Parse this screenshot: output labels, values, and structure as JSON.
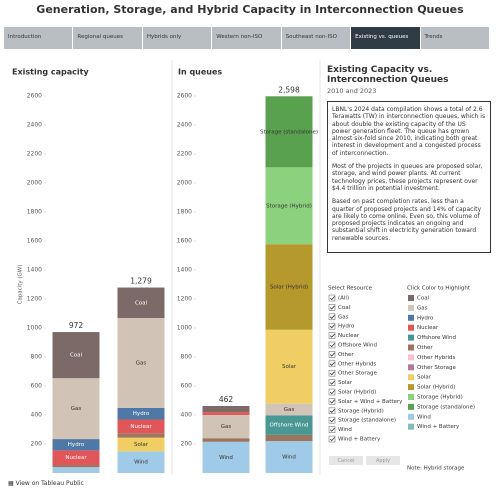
{
  "header": {
    "title": "Generation, Storage, and Hybrid Capacity in Interconnection Queues"
  },
  "tabs": [
    "Introduction",
    "Regional queues",
    "Hybrids only",
    "Western non-ISO",
    "Southeast non-ISO",
    "Existing vs. queues",
    "Trends"
  ],
  "chart_data": [
    {
      "type": "bar",
      "stacked": true,
      "title": "Existing capacity",
      "y_label": "Capacity (GW)",
      "categories": [
        null,
        null
      ],
      "ylim": [
        0,
        2600
      ],
      "yticks": [
        200,
        400,
        600,
        800,
        1000,
        1200,
        1400,
        1600,
        1800,
        2000,
        2200,
        2400,
        2600
      ],
      "series": [
        {
          "name": "Wind",
          "color": "#a0cbe8",
          "values": [
            40,
            149
          ]
        },
        {
          "name": "Solar",
          "color": "#f1ce63",
          "values": [
            0,
            95
          ]
        },
        {
          "name": "Other",
          "color": "#9c755f",
          "values": [
            15,
            30
          ]
        },
        {
          "name": "Nuclear",
          "color": "#e15759",
          "values": [
            101,
            95
          ]
        },
        {
          "name": "Hydro",
          "color": "#4e79a7",
          "values": [
            78,
            80
          ]
        },
        {
          "name": "Gas",
          "color": "#d1c3b6",
          "values": [
            420,
            620
          ]
        },
        {
          "name": "Coal",
          "color": "#7b6a67",
          "values": [
            318,
            210
          ]
        }
      ],
      "totals": [
        972,
        1279
      ],
      "total_labels": [
        "972",
        "1,279"
      ]
    },
    {
      "type": "bar",
      "stacked": true,
      "title": "In queues",
      "categories": [
        null,
        null
      ],
      "ylim": [
        0,
        2600
      ],
      "yticks": [
        200,
        400,
        600,
        800,
        1000,
        1200,
        1400,
        1600,
        1800,
        2000,
        2200,
        2400,
        2600
      ],
      "series": [
        {
          "name": "Wind",
          "color": "#a0cbe8",
          "values": [
            215,
            220
          ]
        },
        {
          "name": "Other",
          "color": "#9c755f",
          "values": [
            25,
            43
          ]
        },
        {
          "name": "Offshore Wind",
          "color": "#499894",
          "values": [
            0,
            135
          ]
        },
        {
          "name": "Gas",
          "color": "#d1c3b6",
          "values": [
            160,
            80
          ]
        },
        {
          "name": "Nuclear",
          "color": "#e15759",
          "values": [
            20,
            0
          ]
        },
        {
          "name": "Coal",
          "color": "#7b6a67",
          "values": [
            42,
            0
          ]
        },
        {
          "name": "Solar",
          "color": "#f1ce63",
          "values": [
            0,
            510
          ]
        },
        {
          "name": "Solar (Hybrid)",
          "color": "#b6992d",
          "values": [
            0,
            590
          ]
        },
        {
          "name": "Storage (Hybrid)",
          "color": "#8cd17d",
          "values": [
            0,
            530
          ]
        },
        {
          "name": "Storage (standalone)",
          "color": "#59a14f",
          "values": [
            0,
            490
          ]
        }
      ],
      "totals": [
        462,
        2598
      ],
      "total_labels": [
        "462",
        "2,598"
      ]
    }
  ],
  "panel": {
    "title": "Existing Capacity vs. Interconnection Queues",
    "subtitle": "2010 and 2023",
    "paragraphs": [
      "LBNL's 2024 data compilation shows a total of 2.6 Terawatts (TW) in interconnection queues, which is about double the existing capacity of the US power generation fleet. The queue has grown almost six-fold since 2010, indicating both great interest in development and a congested process of interconnection.",
      "Most of the projects in queues are proposed solar, storage, and wind power plants. At current technology prices, these projects represent over $4.4 trillion in potential investment.",
      "Based on past completion rates, less than a quarter of proposed projects and 14% of capacity are likely to come online. Even so, this volume of proposed projects indicates an ongoing and substantial shift in electricity generation toward renewable sources."
    ]
  },
  "select_resource": {
    "title": "Select Resource",
    "items": [
      "(All)",
      "Coal",
      "Gas",
      "Hydro",
      "Nuclear",
      "Offshore Wind",
      "Other",
      "Other Hybrids",
      "Other Storage",
      "Solar",
      "Solar (Hybrid)",
      "Solar + Wind + Battery",
      "Storage (Hybrid)",
      "Storage (standalone)",
      "Wind",
      "Wind + Battery"
    ],
    "cancel": "Cancel",
    "apply": "Apply"
  },
  "color_legend": {
    "title": "Click Color to Highlight",
    "items": [
      {
        "name": "Coal",
        "color": "#7b6a67"
      },
      {
        "name": "Gas",
        "color": "#d1c3b6"
      },
      {
        "name": "Hydro",
        "color": "#4e79a7"
      },
      {
        "name": "Nuclear",
        "color": "#e15759"
      },
      {
        "name": "Offshore Wind",
        "color": "#499894"
      },
      {
        "name": "Other",
        "color": "#9c755f"
      },
      {
        "name": "Other Hybrids",
        "color": "#fabfd2"
      },
      {
        "name": "Other Storage",
        "color": "#b07aa1"
      },
      {
        "name": "Solar",
        "color": "#f1ce63"
      },
      {
        "name": "Solar (Hybrid)",
        "color": "#b6992d"
      },
      {
        "name": "Storage (Hybrid)",
        "color": "#8cd17d"
      },
      {
        "name": "Storage (standalone)",
        "color": "#59a14f"
      },
      {
        "name": "Wind",
        "color": "#a0cbe8"
      },
      {
        "name": "Wind + Battery",
        "color": "#86bcb6"
      }
    ],
    "note": "Note: Hybrid storage"
  },
  "footer": "View on Tableau Public"
}
